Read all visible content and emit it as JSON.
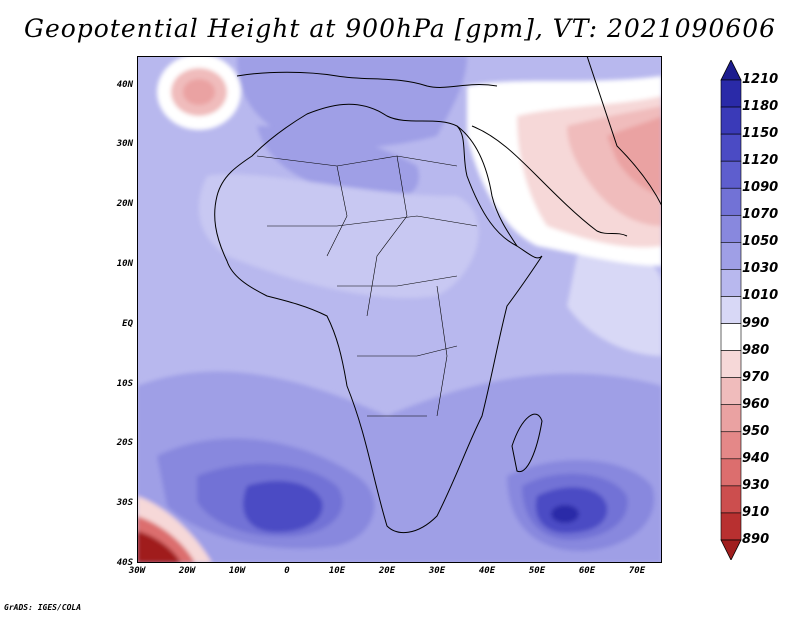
{
  "title": "Geopotential Height at 900hPa [gpm], VT: 2021090606",
  "footer": "GrADS: IGES/COLA",
  "map": {
    "lon_range": [
      -30,
      75
    ],
    "lat_range": [
      -40,
      45
    ],
    "y_ticks": [
      "40N",
      "30N",
      "20N",
      "10N",
      "EQ",
      "10S",
      "20S",
      "30S",
      "40S"
    ],
    "x_ticks": [
      "30W",
      "20W",
      "10W",
      "0",
      "10E",
      "20E",
      "30E",
      "40E",
      "50E",
      "60E",
      "70E"
    ]
  },
  "colorbar": {
    "levels": [
      "1210",
      "1180",
      "1150",
      "1120",
      "1090",
      "1070",
      "1050",
      "1030",
      "1010",
      "990",
      "980",
      "970",
      "960",
      "950",
      "940",
      "930",
      "910",
      "890"
    ],
    "colors": [
      "#1d1d8e",
      "#2a2aa8",
      "#3a3ab8",
      "#4b4bc4",
      "#5e5ece",
      "#7272d6",
      "#8888de",
      "#9f9fe6",
      "#b8b8ee",
      "#d8d8f6",
      "#ffffff",
      "#f6d8d8",
      "#f0bcbc",
      "#eaa2a2",
      "#e48888",
      "#dc6e6e",
      "#cc4e4e",
      "#b83030",
      "#a01e1e"
    ]
  },
  "chart_data": {
    "type": "heatmap",
    "title": "Geopotential Height at 900hPa [gpm], VT: 2021090606",
    "variable": "Geopotential Height",
    "level": "900hPa",
    "units": "gpm",
    "valid_time": "2021090606",
    "legend_levels": [
      1210,
      1180,
      1150,
      1120,
      1090,
      1070,
      1050,
      1030,
      1010,
      990,
      980,
      970,
      960,
      950,
      940,
      930,
      910,
      890
    ],
    "xlim": [
      -30,
      75
    ],
    "ylim": [
      -40,
      45
    ],
    "features": [
      {
        "name": "high",
        "lon": 0,
        "lat": -32,
        "value": 1150
      },
      {
        "name": "high",
        "lon": 56,
        "lat": -33,
        "value": 1150
      },
      {
        "name": "low",
        "lon": -28,
        "lat": -40,
        "value": 910
      },
      {
        "name": "low",
        "lon": -18,
        "lat": 39,
        "value": 970
      },
      {
        "name": "low",
        "lon": 68,
        "lat": 28,
        "value": 970
      }
    ]
  }
}
